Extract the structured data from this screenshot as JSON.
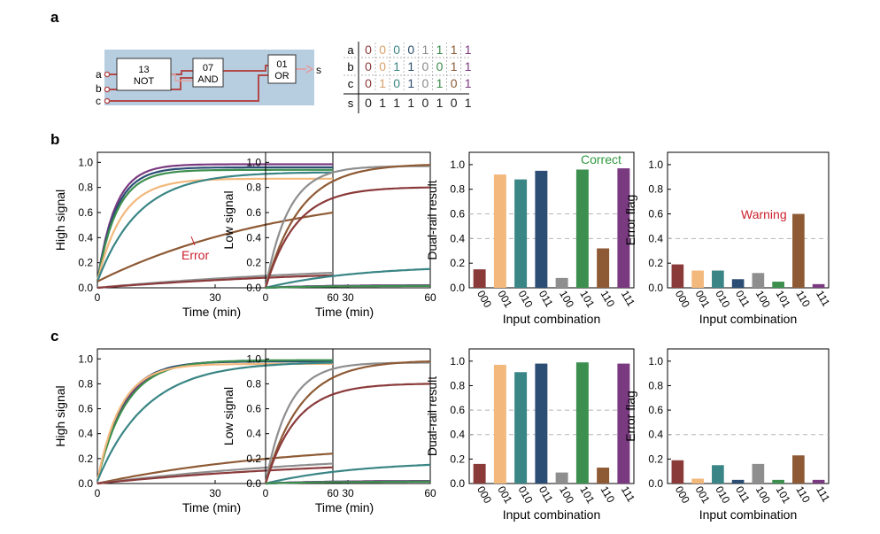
{
  "panel_labels": {
    "a": "a",
    "b": "b",
    "c": "c"
  },
  "circuit": {
    "inputs": [
      "a",
      "b",
      "c"
    ],
    "output": "s",
    "gates": [
      {
        "id": "13",
        "type": "NOT"
      },
      {
        "id": "07",
        "type": "AND"
      },
      {
        "id": "01",
        "type": "OR"
      }
    ],
    "colors": {
      "background": "#b7cde0",
      "wire": "#b24a4a"
    }
  },
  "truth_table": {
    "rows": [
      {
        "name": "a",
        "values": [
          "0",
          "0",
          "0",
          "0",
          "1",
          "1",
          "1",
          "1"
        ]
      },
      {
        "name": "b",
        "values": [
          "0",
          "0",
          "1",
          "1",
          "0",
          "0",
          "1",
          "1"
        ]
      },
      {
        "name": "c",
        "values": [
          "0",
          "1",
          "0",
          "1",
          "0",
          "1",
          "0",
          "1"
        ]
      },
      {
        "name": "s",
        "values": [
          "0",
          "1",
          "1",
          "1",
          "0",
          "1",
          "0",
          "1"
        ]
      }
    ],
    "column_colors": [
      "#8b3a3a",
      "#d9a06a",
      "#3e8585",
      "#2e4f6e",
      "#8a8a8a",
      "#3c8c4c",
      "#8b5a35",
      "#7a3a7e"
    ]
  },
  "colors": {
    "000": "#8b3a3a",
    "001": "#f2b87c",
    "010": "#3a8585",
    "011": "#2c4e74",
    "100": "#8e8e8e",
    "101": "#3d8f4f",
    "110": "#8e5a35",
    "111": "#7a3a80",
    "annotation_red": "#cc1f2d",
    "annotation_green": "#2e9a3e",
    "threshold": "#b5b5b5"
  },
  "chart_data": [
    {
      "panel": "b",
      "type": "line",
      "xlabel": "Time (min)",
      "ylabel": "High signal",
      "xlim": [
        0,
        60
      ],
      "ylim": [
        0,
        1.08
      ],
      "xticks": [
        "0",
        "30",
        "60"
      ],
      "yticks": [
        "0.0",
        "0.2",
        "0.4",
        "0.6",
        "0.8",
        "1.0"
      ],
      "annotation": "Error",
      "series": [
        {
          "key": "111",
          "start": 0.05,
          "end": 0.985,
          "rate": 0.22
        },
        {
          "key": "011",
          "start": 0.05,
          "end": 0.96,
          "rate": 0.21
        },
        {
          "key": "101",
          "start": 0.05,
          "end": 0.94,
          "rate": 0.2
        },
        {
          "key": "001",
          "start": 0.05,
          "end": 0.87,
          "rate": 0.16
        },
        {
          "key": "010",
          "start": 0.05,
          "end": 0.92,
          "rate": 0.095
        },
        {
          "key": "110",
          "start": 0.05,
          "end": 0.6,
          "rate": 0.02
        },
        {
          "key": "100",
          "start": 0.0,
          "end": 0.12,
          "rate": 0.015
        },
        {
          "key": "000",
          "start": 0.0,
          "end": 0.1,
          "rate": 0.015
        }
      ]
    },
    {
      "panel": "b",
      "type": "line",
      "xlabel": "Time (min)",
      "ylabel": "Low signal",
      "xlim": [
        0,
        60
      ],
      "ylim": [
        0,
        1.08
      ],
      "xticks": [
        "0",
        "30",
        "60"
      ],
      "yticks": [
        "0.0",
        "0.2",
        "0.4",
        "0.6",
        "0.8",
        "1.0"
      ],
      "series": [
        {
          "key": "100",
          "start": 0.0,
          "end": 0.97,
          "rate": 0.12
        },
        {
          "key": "110",
          "start": 0.0,
          "end": 0.98,
          "rate": 0.08
        },
        {
          "key": "000",
          "start": 0.0,
          "end": 0.8,
          "rate": 0.09
        },
        {
          "key": "010",
          "start": 0.0,
          "end": 0.15,
          "rate": 0.03
        },
        {
          "key": "011",
          "start": 0.0,
          "end": 0.02,
          "rate": 0.05
        },
        {
          "key": "111",
          "start": 0.0,
          "end": 0.02,
          "rate": 0.05
        },
        {
          "key": "101",
          "start": 0.0,
          "end": 0.015,
          "rate": 0.05
        }
      ]
    },
    {
      "panel": "b",
      "type": "bar",
      "xlabel": "Input combination",
      "ylabel": "Dual-rail result",
      "categories": [
        "000",
        "001",
        "010",
        "011",
        "100",
        "101",
        "110",
        "111"
      ],
      "values": [
        0.15,
        0.92,
        0.88,
        0.95,
        0.08,
        0.96,
        0.32,
        0.97
      ],
      "ylim": [
        0,
        1.1
      ],
      "yticks": [
        "0.0",
        "0.2",
        "0.4",
        "0.6",
        "0.8",
        "1.0"
      ],
      "thresholds": [
        0.4,
        0.6
      ],
      "annotation": "Correct"
    },
    {
      "panel": "b",
      "type": "bar",
      "xlabel": "Input combination",
      "ylabel": "Error flag",
      "categories": [
        "000",
        "001",
        "010",
        "011",
        "100",
        "101",
        "110",
        "111"
      ],
      "values": [
        0.19,
        0.14,
        0.14,
        0.07,
        0.12,
        0.05,
        0.6,
        0.03
      ],
      "ylim": [
        0,
        1.1
      ],
      "yticks": [
        "0.0",
        "0.2",
        "0.4",
        "0.6",
        "0.8",
        "1.0"
      ],
      "thresholds": [
        0.4
      ],
      "annotation": "Warning"
    },
    {
      "panel": "c",
      "type": "line",
      "xlabel": "Time (min)",
      "ylabel": "High signal",
      "xlim": [
        0,
        60
      ],
      "ylim": [
        0,
        1.08
      ],
      "xticks": [
        "0",
        "30",
        "60"
      ],
      "yticks": [
        "0.0",
        "0.2",
        "0.4",
        "0.6",
        "0.8",
        "1.0"
      ],
      "series": [
        {
          "key": "111",
          "start": 0.02,
          "end": 0.985,
          "rate": 0.15
        },
        {
          "key": "011",
          "start": 0.02,
          "end": 0.98,
          "rate": 0.16
        },
        {
          "key": "101",
          "start": 0.02,
          "end": 0.99,
          "rate": 0.14
        },
        {
          "key": "001",
          "start": 0.02,
          "end": 0.96,
          "rate": 0.17
        },
        {
          "key": "010",
          "start": 0.02,
          "end": 0.97,
          "rate": 0.08
        },
        {
          "key": "110",
          "start": 0.0,
          "end": 0.24,
          "rate": 0.02
        },
        {
          "key": "100",
          "start": 0.0,
          "end": 0.16,
          "rate": 0.015
        },
        {
          "key": "000",
          "start": 0.0,
          "end": 0.13,
          "rate": 0.015
        }
      ]
    },
    {
      "panel": "c",
      "type": "line",
      "xlabel": "Time (min)",
      "ylabel": "Low signal",
      "xlim": [
        0,
        60
      ],
      "ylim": [
        0,
        1.08
      ],
      "xticks": [
        "0",
        "30",
        "60"
      ],
      "yticks": [
        "0.0",
        "0.2",
        "0.4",
        "0.6",
        "0.8",
        "1.0"
      ],
      "series": [
        {
          "key": "100",
          "start": 0.0,
          "end": 0.97,
          "rate": 0.12
        },
        {
          "key": "110",
          "start": 0.0,
          "end": 0.98,
          "rate": 0.08
        },
        {
          "key": "000",
          "start": 0.0,
          "end": 0.8,
          "rate": 0.09
        },
        {
          "key": "010",
          "start": 0.0,
          "end": 0.15,
          "rate": 0.03
        },
        {
          "key": "011",
          "start": 0.0,
          "end": 0.02,
          "rate": 0.05
        },
        {
          "key": "111",
          "start": 0.0,
          "end": 0.02,
          "rate": 0.05
        },
        {
          "key": "101",
          "start": 0.0,
          "end": 0.015,
          "rate": 0.05
        }
      ]
    },
    {
      "panel": "c",
      "type": "bar",
      "xlabel": "Input combination",
      "ylabel": "Dual-rail result",
      "categories": [
        "000",
        "001",
        "010",
        "011",
        "100",
        "101",
        "110",
        "111"
      ],
      "values": [
        0.16,
        0.97,
        0.91,
        0.98,
        0.09,
        0.99,
        0.13,
        0.98
      ],
      "ylim": [
        0,
        1.1
      ],
      "yticks": [
        "0.0",
        "0.2",
        "0.4",
        "0.6",
        "0.8",
        "1.0"
      ],
      "thresholds": [
        0.4,
        0.6
      ]
    },
    {
      "panel": "c",
      "type": "bar",
      "xlabel": "Input combination",
      "ylabel": "Error flag",
      "categories": [
        "000",
        "001",
        "010",
        "011",
        "100",
        "101",
        "110",
        "111"
      ],
      "values": [
        0.19,
        0.04,
        0.15,
        0.03,
        0.16,
        0.03,
        0.23,
        0.03
      ],
      "ylim": [
        0,
        1.1
      ],
      "yticks": [
        "0.0",
        "0.2",
        "0.4",
        "0.6",
        "0.8",
        "1.0"
      ],
      "thresholds": [
        0.4
      ]
    }
  ]
}
